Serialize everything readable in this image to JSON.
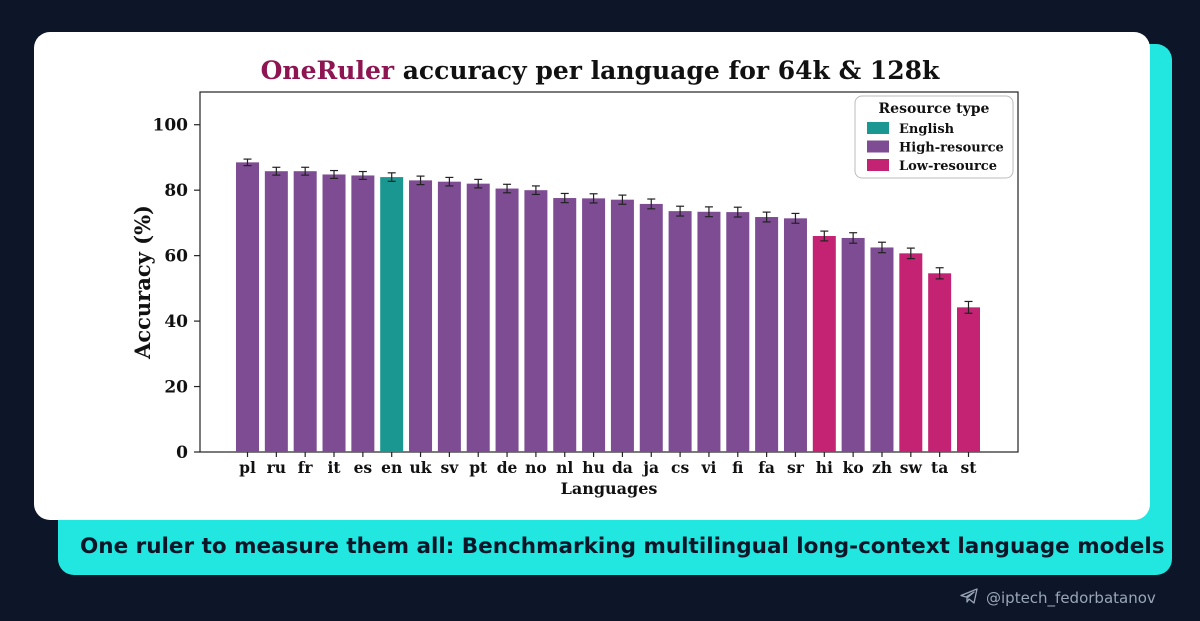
{
  "caption": "One ruler to measure them all: Benchmarking multilingual long-context language models",
  "handle": "@iptech_fedorbatanov",
  "icons": {
    "handle": "telegram-icon"
  },
  "colors": {
    "background": "#0c1628",
    "accent_card": "#22e6e0",
    "title_brand": "#8e1552",
    "English": "#1a9790",
    "High-resource": "#7d4c93",
    "Low-resource": "#c42373"
  },
  "chart_data": {
    "type": "bar",
    "title_brand": "OneRuler",
    "title_rest": " accuracy per language for 64k & 128k",
    "xlabel": "Languages",
    "ylabel": "Accuracy (%)",
    "ylim": [
      0,
      110
    ],
    "yticks": [
      0,
      20,
      40,
      60,
      80,
      100
    ],
    "grid": false,
    "legend_placement": "top-right",
    "legend": {
      "title": "Resource type",
      "entries": [
        "English",
        "High-resource",
        "Low-resource"
      ]
    },
    "categories": [
      "pl",
      "ru",
      "fr",
      "it",
      "es",
      "en",
      "uk",
      "sv",
      "pt",
      "de",
      "no",
      "nl",
      "hu",
      "da",
      "ja",
      "cs",
      "vi",
      "fi",
      "fa",
      "sr",
      "hi",
      "ko",
      "zh",
      "sw",
      "ta",
      "st"
    ],
    "values": [
      88.5,
      85.8,
      85.8,
      84.8,
      84.5,
      84.0,
      83.0,
      82.6,
      82.0,
      80.5,
      80.0,
      77.6,
      77.5,
      77.1,
      75.8,
      73.6,
      73.4,
      73.3,
      71.8,
      71.4,
      66.0,
      65.4,
      62.5,
      60.7,
      54.6,
      44.2
    ],
    "errors": [
      1.0,
      1.2,
      1.2,
      1.2,
      1.2,
      1.3,
      1.3,
      1.3,
      1.3,
      1.3,
      1.3,
      1.4,
      1.4,
      1.4,
      1.5,
      1.5,
      1.5,
      1.5,
      1.5,
      1.5,
      1.5,
      1.6,
      1.6,
      1.6,
      1.7,
      1.8
    ],
    "resource_type": [
      "High-resource",
      "High-resource",
      "High-resource",
      "High-resource",
      "High-resource",
      "English",
      "High-resource",
      "High-resource",
      "High-resource",
      "High-resource",
      "High-resource",
      "High-resource",
      "High-resource",
      "High-resource",
      "High-resource",
      "High-resource",
      "High-resource",
      "High-resource",
      "High-resource",
      "High-resource",
      "Low-resource",
      "High-resource",
      "High-resource",
      "Low-resource",
      "Low-resource",
      "Low-resource"
    ]
  }
}
